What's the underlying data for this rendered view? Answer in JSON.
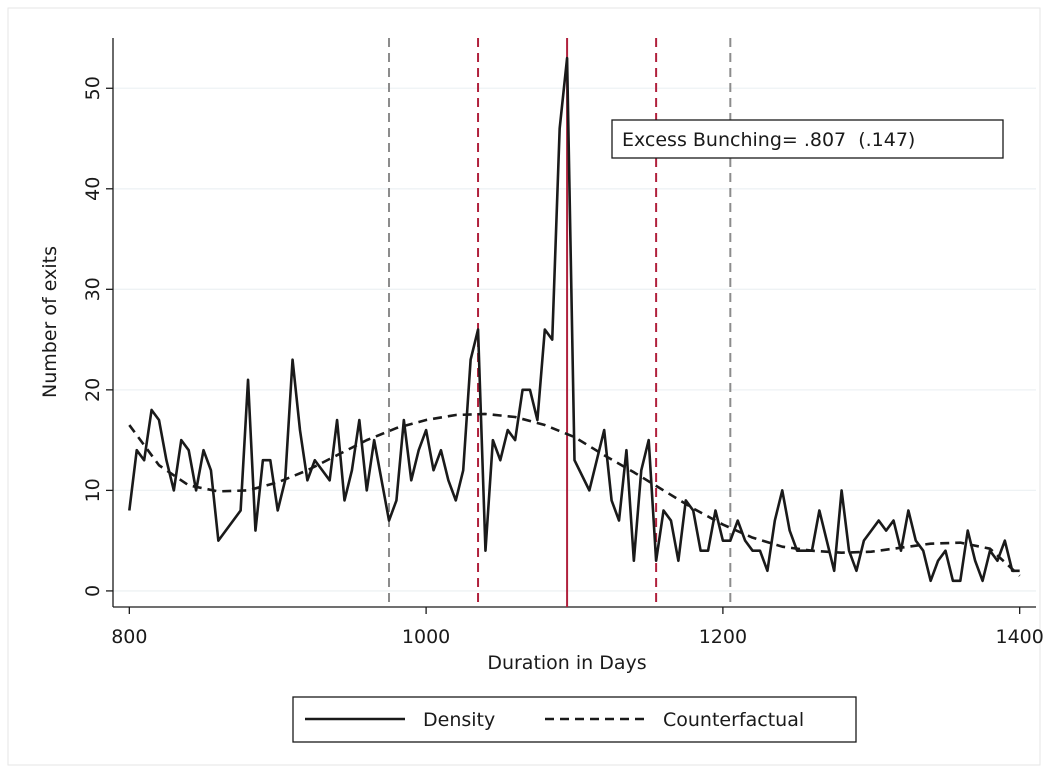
{
  "chart_data": {
    "type": "line",
    "xlabel": "Duration in Days",
    "ylabel": "Number of exits",
    "annotation": "Excess Bunching= .807  (.147)",
    "xlim": [
      789,
      1411
    ],
    "ylim": [
      -1.6,
      55
    ],
    "xticks": [
      800,
      1000,
      1200,
      1400
    ],
    "yticks": [
      0,
      10,
      20,
      30,
      40,
      50
    ],
    "grid": true,
    "legend": "bottom",
    "vlines": [
      {
        "x": 975,
        "color": "#8c8c8c",
        "style": "dashed"
      },
      {
        "x": 1035,
        "color": "#b0203c",
        "style": "dashed"
      },
      {
        "x": 1095,
        "color": "#b0203c",
        "style": "solid"
      },
      {
        "x": 1155,
        "color": "#b0203c",
        "style": "dashed"
      },
      {
        "x": 1205,
        "color": "#8c8c8c",
        "style": "dashed"
      }
    ],
    "series": [
      {
        "name": "Density",
        "color": "#1a1a1a",
        "style": "solid",
        "x": [
          800,
          805,
          810,
          815,
          820,
          825,
          830,
          835,
          840,
          845,
          850,
          855,
          860,
          875,
          880,
          885,
          890,
          895,
          900,
          905,
          910,
          915,
          920,
          925,
          930,
          935,
          940,
          945,
          950,
          955,
          960,
          965,
          970,
          975,
          980,
          985,
          990,
          995,
          1000,
          1005,
          1010,
          1015,
          1020,
          1025,
          1030,
          1035,
          1040,
          1045,
          1050,
          1055,
          1060,
          1065,
          1070,
          1075,
          1080,
          1085,
          1090,
          1095,
          1100,
          1110,
          1120,
          1125,
          1130,
          1135,
          1140,
          1145,
          1150,
          1155,
          1160,
          1165,
          1170,
          1175,
          1180,
          1185,
          1190,
          1195,
          1200,
          1205,
          1210,
          1215,
          1220,
          1225,
          1230,
          1235,
          1240,
          1245,
          1250,
          1255,
          1260,
          1265,
          1270,
          1275,
          1280,
          1285,
          1290,
          1295,
          1300,
          1305,
          1310,
          1315,
          1320,
          1325,
          1330,
          1335,
          1340,
          1345,
          1350,
          1355,
          1360,
          1365,
          1370,
          1375,
          1380,
          1385,
          1390,
          1395,
          1400
        ],
        "values": [
          8,
          14,
          13,
          18,
          17,
          13,
          10,
          15,
          14,
          10,
          14,
          12,
          5,
          8,
          21,
          6,
          13,
          13,
          8,
          11,
          23,
          16,
          11,
          13,
          12,
          11,
          17,
          9,
          12,
          17,
          10,
          15,
          11,
          7,
          9,
          17,
          11,
          14,
          16,
          12,
          14,
          11,
          9,
          12,
          23,
          26,
          4,
          15,
          13,
          16,
          15,
          20,
          20,
          17,
          26,
          25,
          46,
          53,
          13,
          10,
          16,
          9,
          7,
          14,
          3,
          12,
          15,
          3,
          8,
          7,
          3,
          9,
          8,
          4,
          4,
          8,
          5,
          5,
          7,
          5,
          4,
          4,
          2,
          7,
          10,
          6,
          4,
          4,
          4,
          8,
          5,
          2,
          10,
          4,
          2,
          5,
          6,
          7,
          6,
          7,
          4,
          8,
          5,
          4,
          1,
          3,
          4,
          1,
          1,
          6,
          3,
          1,
          4,
          3,
          5,
          2,
          2
        ]
      },
      {
        "name": "Counterfactual",
        "color": "#1a1a1a",
        "style": "dashed",
        "x": [
          800,
          820,
          840,
          860,
          880,
          900,
          920,
          940,
          960,
          980,
          1000,
          1020,
          1040,
          1060,
          1080,
          1100,
          1120,
          1140,
          1160,
          1180,
          1200,
          1220,
          1240,
          1260,
          1280,
          1300,
          1320,
          1340,
          1360,
          1380,
          1400
        ],
        "values": [
          16.5,
          12.5,
          10.5,
          9.9,
          10,
          10.8,
          12,
          13.5,
          15,
          16.2,
          17,
          17.5,
          17.6,
          17.3,
          16.5,
          15.3,
          13.5,
          11.8,
          10,
          8.2,
          6.6,
          5.3,
          4.4,
          4,
          3.8,
          3.9,
          4.3,
          4.7,
          4.8,
          4.2,
          1.5
        ]
      }
    ]
  }
}
